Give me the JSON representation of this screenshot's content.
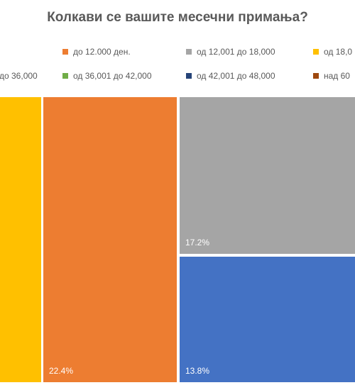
{
  "title": "Колкави се вашите месечни примања?",
  "colors": {
    "title_text": "#595959",
    "legend_text": "#595959",
    "label_text": "#ffffff",
    "gap": "#ffffff"
  },
  "legend": {
    "row1": [
      {
        "label": "до 12.000 ден.",
        "color": "#ED7D31"
      },
      {
        "label": "од 12,001 до 18,000",
        "color": "#A5A5A5"
      },
      {
        "label": "од 18,0",
        "color": "#FFC000"
      }
    ],
    "row2": [
      {
        "label": "до 36,000",
        "color": "#4472C4"
      },
      {
        "label": "од 36,001 до 42,000",
        "color": "#70AD47"
      },
      {
        "label": "од 42,001 до 48,000",
        "color": "#264478"
      },
      {
        "label": "над 60",
        "color": "#9E480E"
      }
    ]
  },
  "chart_data": {
    "type": "treemap",
    "title": "Колкави се вашите месечни примања?",
    "legend_position": "top",
    "series": [
      {
        "name": "од 18,0",
        "color": "#FFC000",
        "value": null,
        "label": ""
      },
      {
        "name": "до 12.000 ден.",
        "color": "#ED7D31",
        "value": 22.4,
        "label": "22.4%"
      },
      {
        "name": "од 12,001 до 18,000",
        "color": "#A5A5A5",
        "value": 17.2,
        "label": "17.2%"
      },
      {
        "name": "до 36,000",
        "color": "#4472C4",
        "value": 13.8,
        "label": "13.8%"
      }
    ]
  }
}
